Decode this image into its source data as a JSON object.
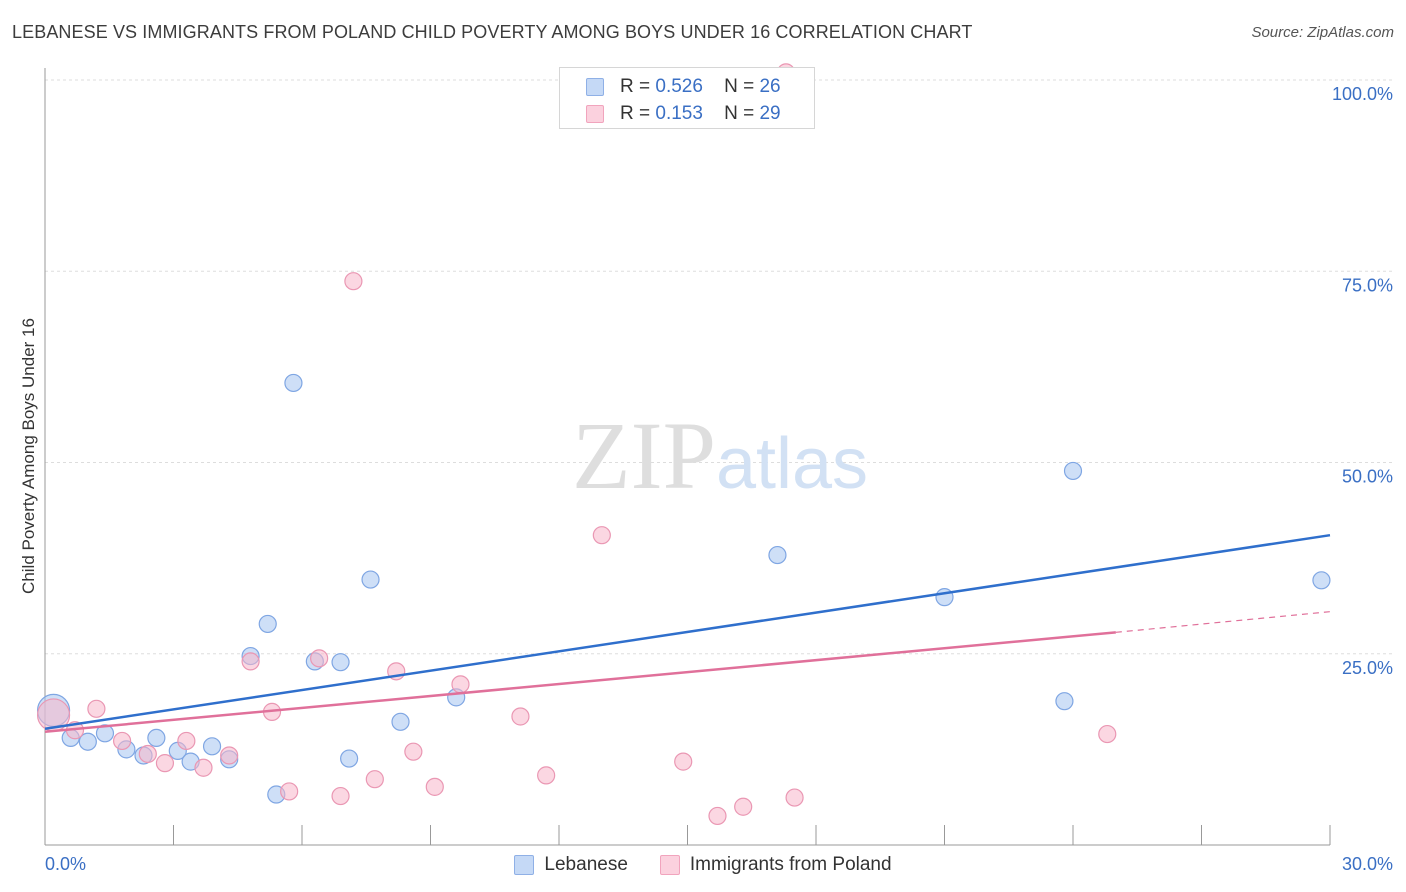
{
  "chart_data": {
    "type": "scatter",
    "title": "LEBANESE VS IMMIGRANTS FROM POLAND CHILD POVERTY AMONG BOYS UNDER 16 CORRELATION CHART",
    "source": "Source: ZipAtlas.com",
    "xlabel": "",
    "ylabel": "Child Poverty Among Boys Under 16",
    "xlim": [
      0,
      30
    ],
    "ylim": [
      0,
      100
    ],
    "x_tick_labels": [
      "0.0%",
      "30.0%"
    ],
    "y_ticks": [
      25,
      50,
      75,
      100
    ],
    "y_tick_labels": [
      "25.0%",
      "50.0%",
      "75.0%",
      "100.0%"
    ],
    "grid": true,
    "watermark": {
      "part1": "ZIP",
      "part2": "atlas"
    },
    "stats": [
      {
        "r_label": "R =",
        "r_value": "0.526",
        "n_label": "N =",
        "n_value": "26"
      },
      {
        "r_label": "R =",
        "r_value": "0.153",
        "n_label": "N =",
        "n_value": "29"
      }
    ],
    "series": [
      {
        "name": "Lebanese",
        "color": "#9dbdf0",
        "line_color": "#2f6fcc",
        "trend": {
          "x0": 0,
          "y0": 15.2,
          "x1": 30,
          "y1": 40.5
        },
        "points": [
          {
            "x": 0.2,
            "y": 17.6
          },
          {
            "x": 0.6,
            "y": 14.0
          },
          {
            "x": 1.0,
            "y": 13.5
          },
          {
            "x": 1.4,
            "y": 14.6
          },
          {
            "x": 1.9,
            "y": 12.5
          },
          {
            "x": 2.3,
            "y": 11.7
          },
          {
            "x": 2.6,
            "y": 14.0
          },
          {
            "x": 3.1,
            "y": 12.3
          },
          {
            "x": 3.4,
            "y": 10.9
          },
          {
            "x": 3.9,
            "y": 12.9
          },
          {
            "x": 4.3,
            "y": 11.2
          },
          {
            "x": 4.8,
            "y": 24.7
          },
          {
            "x": 5.2,
            "y": 28.9
          },
          {
            "x": 5.4,
            "y": 6.6
          },
          {
            "x": 5.8,
            "y": 60.4
          },
          {
            "x": 6.3,
            "y": 24.0
          },
          {
            "x": 6.9,
            "y": 23.9
          },
          {
            "x": 7.1,
            "y": 11.3
          },
          {
            "x": 7.6,
            "y": 34.7
          },
          {
            "x": 8.3,
            "y": 16.1
          },
          {
            "x": 9.6,
            "y": 19.3
          },
          {
            "x": 17.1,
            "y": 37.9
          },
          {
            "x": 21.0,
            "y": 32.4
          },
          {
            "x": 23.8,
            "y": 18.8
          },
          {
            "x": 24.0,
            "y": 48.9
          },
          {
            "x": 29.8,
            "y": 34.6
          }
        ]
      },
      {
        "name": "Immigrants from Poland",
        "color": "#f5b7c9",
        "line_color": "#e0709a",
        "trend": {
          "x0": 0,
          "y0": 14.8,
          "x1": 25,
          "y1": 27.8
        },
        "trend_ext": {
          "x0": 25,
          "y0": 27.8,
          "x1": 30,
          "y1": 30.5
        },
        "points": [
          {
            "x": 0.2,
            "y": 17.0
          },
          {
            "x": 0.7,
            "y": 15.0
          },
          {
            "x": 1.2,
            "y": 17.8
          },
          {
            "x": 1.8,
            "y": 13.6
          },
          {
            "x": 2.4,
            "y": 11.9
          },
          {
            "x": 2.8,
            "y": 10.7
          },
          {
            "x": 3.3,
            "y": 13.6
          },
          {
            "x": 3.7,
            "y": 10.1
          },
          {
            "x": 4.3,
            "y": 11.7
          },
          {
            "x": 4.8,
            "y": 24.0
          },
          {
            "x": 5.3,
            "y": 17.4
          },
          {
            "x": 5.7,
            "y": 7.0
          },
          {
            "x": 6.4,
            "y": 24.4
          },
          {
            "x": 6.9,
            "y": 6.4
          },
          {
            "x": 7.2,
            "y": 73.7
          },
          {
            "x": 7.7,
            "y": 8.6
          },
          {
            "x": 8.2,
            "y": 22.7
          },
          {
            "x": 8.6,
            "y": 12.2
          },
          {
            "x": 9.1,
            "y": 7.6
          },
          {
            "x": 9.7,
            "y": 21.0
          },
          {
            "x": 11.1,
            "y": 16.8
          },
          {
            "x": 11.7,
            "y": 9.1
          },
          {
            "x": 13.0,
            "y": 40.5
          },
          {
            "x": 14.9,
            "y": 10.9
          },
          {
            "x": 15.7,
            "y": 3.8
          },
          {
            "x": 16.3,
            "y": 5.0
          },
          {
            "x": 17.5,
            "y": 6.2
          },
          {
            "x": 24.8,
            "y": 14.5
          },
          {
            "x": 17.3,
            "y": 101.0
          }
        ]
      }
    ]
  }
}
